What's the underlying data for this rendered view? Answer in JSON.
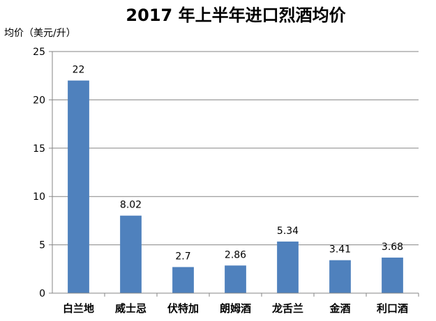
{
  "chart_data": {
    "type": "bar",
    "title": "2017 年上半年进口烈酒均价",
    "xlabel": "",
    "ylabel": "均价（美元/升）",
    "categories": [
      "白兰地",
      "威士忌",
      "伏特加",
      "朗姆酒",
      "龙舌兰",
      "金酒",
      "利口酒"
    ],
    "values": [
      22,
      8.02,
      2.7,
      2.86,
      5.34,
      3.41,
      3.68
    ],
    "value_labels": [
      "22",
      "8.02",
      "2.7",
      "2.86",
      "5.34",
      "3.41",
      "3.68"
    ],
    "ylim": [
      0,
      25
    ],
    "yticks": [
      "0",
      "5",
      "10",
      "15",
      "20",
      "25"
    ],
    "grid": true,
    "legend": "none",
    "bar_color": "#4F81BD"
  }
}
